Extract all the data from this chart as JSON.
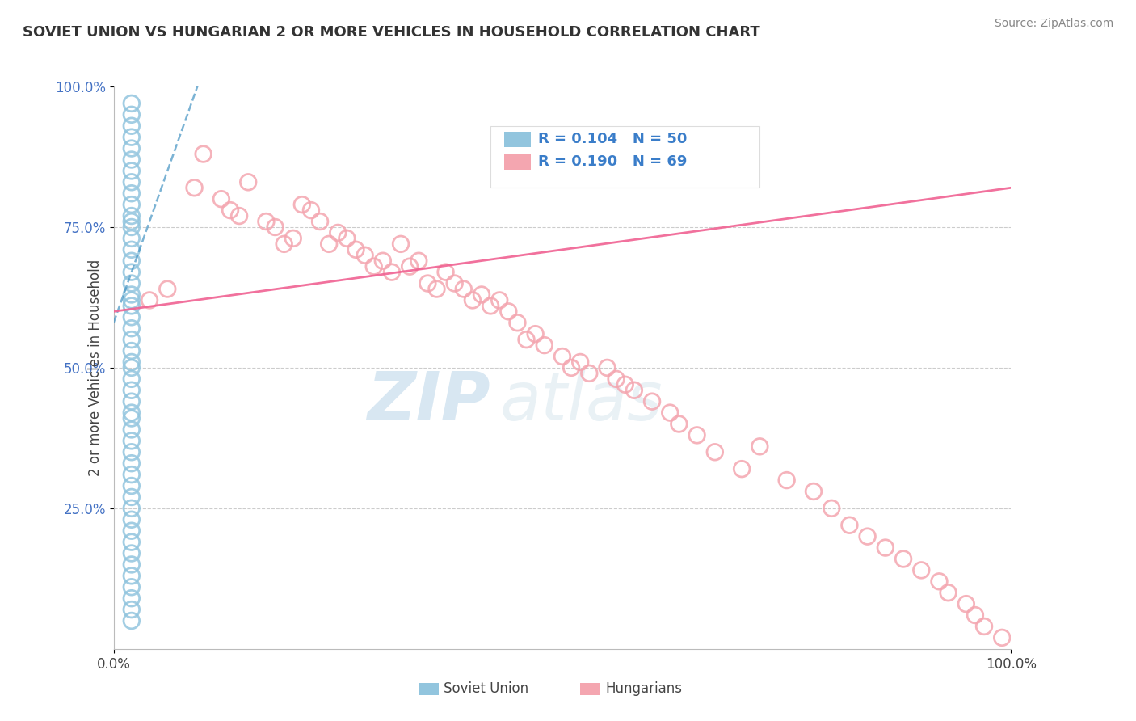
{
  "title": "SOVIET UNION VS HUNGARIAN 2 OR MORE VEHICLES IN HOUSEHOLD CORRELATION CHART",
  "source": "Source: ZipAtlas.com",
  "ylabel": "2 or more Vehicles in Household",
  "legend_label1": "Soviet Union",
  "legend_label2": "Hungarians",
  "R_soviet": "R = 0.104",
  "N_soviet": "N = 50",
  "R_hungarian": "R = 0.190",
  "N_hungarian": "N = 69",
  "color_soviet": "#92c5de",
  "color_hungarian": "#f4a6b0",
  "color_soviet_line": "#4393c3",
  "color_hungarian_line": "#f06292",
  "watermark_zip": "ZIP",
  "watermark_atlas": "atlas",
  "soviet_x": [
    0.02,
    0.02,
    0.02,
    0.02,
    0.02,
    0.02,
    0.02,
    0.02,
    0.02,
    0.02,
    0.02,
    0.02,
    0.02,
    0.02,
    0.02,
    0.02,
    0.02,
    0.02,
    0.02,
    0.02,
    0.02,
    0.02,
    0.02,
    0.02,
    0.02,
    0.02,
    0.02,
    0.02,
    0.02,
    0.02,
    0.02,
    0.02,
    0.02,
    0.02,
    0.02,
    0.02,
    0.02,
    0.02,
    0.02,
    0.02,
    0.02,
    0.02,
    0.02,
    0.02,
    0.02,
    0.02,
    0.02,
    0.02,
    0.02,
    0.02
  ],
  "soviet_y": [
    0.97,
    0.95,
    0.93,
    0.91,
    0.89,
    0.87,
    0.85,
    0.83,
    0.81,
    0.79,
    0.77,
    0.76,
    0.75,
    0.73,
    0.71,
    0.69,
    0.67,
    0.65,
    0.63,
    0.62,
    0.61,
    0.59,
    0.57,
    0.55,
    0.53,
    0.51,
    0.5,
    0.48,
    0.46,
    0.44,
    0.42,
    0.41,
    0.39,
    0.37,
    0.35,
    0.33,
    0.31,
    0.29,
    0.27,
    0.25,
    0.23,
    0.21,
    0.19,
    0.17,
    0.15,
    0.13,
    0.11,
    0.09,
    0.07,
    0.05
  ],
  "hungarian_x": [
    0.04,
    0.06,
    0.09,
    0.1,
    0.12,
    0.13,
    0.14,
    0.15,
    0.17,
    0.18,
    0.19,
    0.2,
    0.21,
    0.22,
    0.23,
    0.24,
    0.25,
    0.26,
    0.27,
    0.28,
    0.29,
    0.3,
    0.31,
    0.32,
    0.33,
    0.34,
    0.35,
    0.36,
    0.37,
    0.38,
    0.39,
    0.4,
    0.41,
    0.42,
    0.43,
    0.44,
    0.45,
    0.46,
    0.47,
    0.48,
    0.5,
    0.51,
    0.52,
    0.53,
    0.55,
    0.56,
    0.57,
    0.58,
    0.6,
    0.62,
    0.63,
    0.65,
    0.67,
    0.7,
    0.72,
    0.75,
    0.78,
    0.8,
    0.82,
    0.84,
    0.86,
    0.88,
    0.9,
    0.92,
    0.93,
    0.95,
    0.96,
    0.97,
    0.99
  ],
  "hungarian_y": [
    0.62,
    0.64,
    0.82,
    0.88,
    0.8,
    0.78,
    0.77,
    0.83,
    0.76,
    0.75,
    0.72,
    0.73,
    0.79,
    0.78,
    0.76,
    0.72,
    0.74,
    0.73,
    0.71,
    0.7,
    0.68,
    0.69,
    0.67,
    0.72,
    0.68,
    0.69,
    0.65,
    0.64,
    0.67,
    0.65,
    0.64,
    0.62,
    0.63,
    0.61,
    0.62,
    0.6,
    0.58,
    0.55,
    0.56,
    0.54,
    0.52,
    0.5,
    0.51,
    0.49,
    0.5,
    0.48,
    0.47,
    0.46,
    0.44,
    0.42,
    0.4,
    0.38,
    0.35,
    0.32,
    0.36,
    0.3,
    0.28,
    0.25,
    0.22,
    0.2,
    0.18,
    0.16,
    0.14,
    0.12,
    0.1,
    0.08,
    0.06,
    0.04,
    0.02
  ],
  "ytick_positions": [
    0.25,
    0.5,
    0.75,
    1.0
  ],
  "ytick_labels": [
    "25.0%",
    "50.0%",
    "75.0%",
    "100.0%"
  ]
}
